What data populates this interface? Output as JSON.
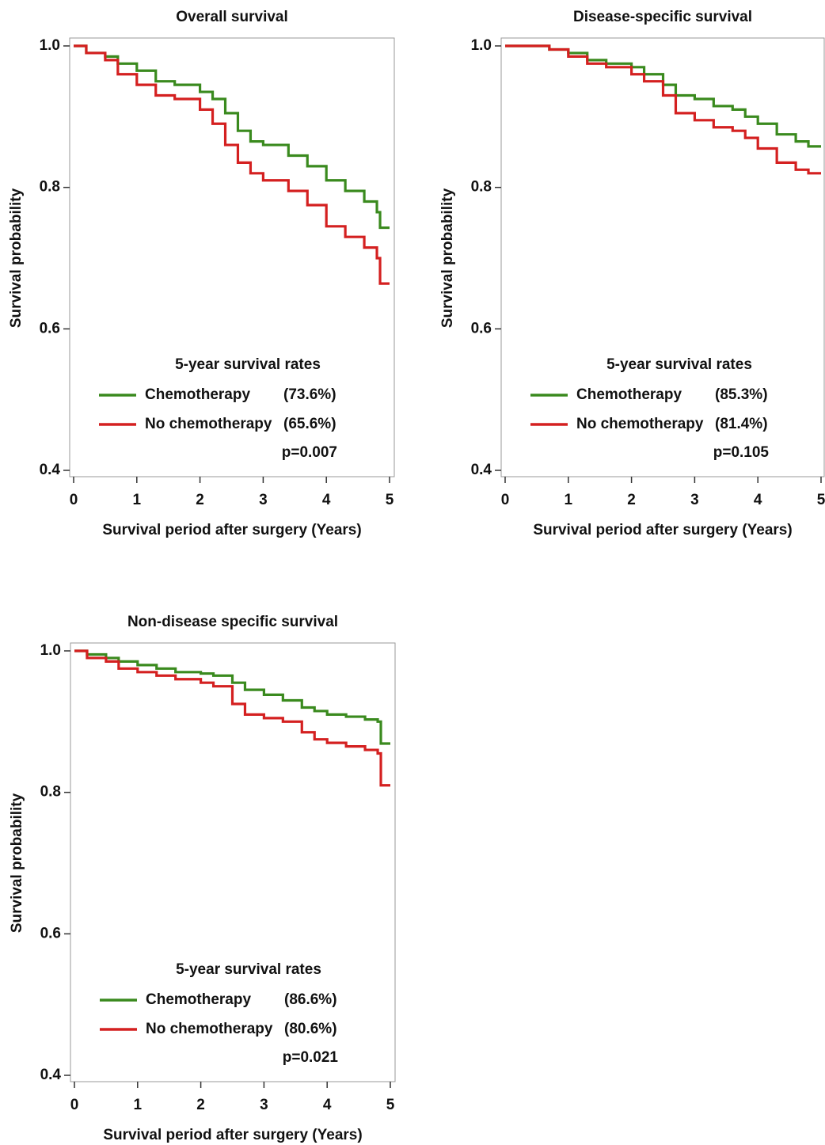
{
  "chart_data": [
    {
      "type": "line",
      "step": true,
      "title": "Overall survival",
      "x_label": "Survival period after surgery (Years)",
      "y_label": "Survival probability",
      "xlim": [
        0,
        5
      ],
      "xticks": [
        0,
        1,
        2,
        3,
        4,
        5
      ],
      "ylim": [
        0.4,
        1.0
      ],
      "yticks": [
        0.4,
        0.6,
        0.8,
        {
          "value": 1,
          "label": "1.0"
        }
      ],
      "legend_title": "5-year survival rates",
      "p_label": "p=0.007",
      "x": [
        0,
        0.2,
        0.5,
        0.7,
        1.0,
        1.3,
        1.6,
        2.0,
        2.2,
        2.4,
        2.6,
        2.8,
        3.0,
        3.4,
        3.7,
        4.0,
        4.3,
        4.6,
        4.8,
        4.85,
        5.0
      ],
      "series": [
        {
          "name": "Chemotherapy",
          "rate_label": "(73.6%)",
          "color": "#3a8a1e",
          "values": [
            1.0,
            0.99,
            0.985,
            0.975,
            0.965,
            0.95,
            0.945,
            0.935,
            0.925,
            0.905,
            0.88,
            0.865,
            0.86,
            0.845,
            0.83,
            0.81,
            0.795,
            0.78,
            0.765,
            0.743,
            0.743
          ]
        },
        {
          "name": "No chemotherapy",
          "rate_label": "(65.6%)",
          "color": "#d42020",
          "values": [
            1.0,
            0.99,
            0.98,
            0.96,
            0.945,
            0.93,
            0.925,
            0.91,
            0.89,
            0.86,
            0.835,
            0.82,
            0.81,
            0.795,
            0.775,
            0.745,
            0.73,
            0.715,
            0.7,
            0.664,
            0.664
          ]
        }
      ]
    },
    {
      "type": "line",
      "step": true,
      "title": "Disease-specific survival",
      "x_label": "Survival period after surgery (Years)",
      "y_label": "Survival probability",
      "xlim": [
        0,
        5
      ],
      "xticks": [
        0,
        1,
        2,
        3,
        4,
        5
      ],
      "ylim": [
        0.4,
        1.0
      ],
      "yticks": [
        0.4,
        0.6,
        0.8,
        {
          "value": 1,
          "label": "1.0"
        }
      ],
      "legend_title": "5-year survival rates",
      "p_label": "p=0.105",
      "x": [
        0,
        0.5,
        0.7,
        1.0,
        1.3,
        1.6,
        2.0,
        2.2,
        2.5,
        2.7,
        3.0,
        3.3,
        3.6,
        3.8,
        4.0,
        4.3,
        4.6,
        4.8,
        5.0
      ],
      "series": [
        {
          "name": "Chemotherapy",
          "rate_label": "(85.3%)",
          "color": "#3a8a1e",
          "values": [
            1.0,
            1.0,
            0.995,
            0.99,
            0.98,
            0.975,
            0.97,
            0.96,
            0.945,
            0.93,
            0.925,
            0.915,
            0.91,
            0.9,
            0.89,
            0.875,
            0.865,
            0.858,
            0.858
          ]
        },
        {
          "name": "No chemotherapy",
          "rate_label": "(81.4%)",
          "color": "#d42020",
          "values": [
            1.0,
            1.0,
            0.995,
            0.985,
            0.975,
            0.97,
            0.96,
            0.95,
            0.93,
            0.905,
            0.895,
            0.885,
            0.88,
            0.87,
            0.855,
            0.835,
            0.825,
            0.82,
            0.82
          ]
        }
      ]
    },
    {
      "type": "line",
      "step": true,
      "title": "Non-disease specific survival",
      "x_label": "Survival period after surgery (Years)",
      "y_label": "Survival probability",
      "xlim": [
        0,
        5
      ],
      "xticks": [
        0,
        1,
        2,
        3,
        4,
        5
      ],
      "ylim": [
        0.4,
        1.0
      ],
      "yticks": [
        0.4,
        0.6,
        0.8,
        {
          "value": 1,
          "label": "1.0"
        }
      ],
      "legend_title": "5-year survival rates",
      "p_label": "p=0.021",
      "x": [
        0,
        0.2,
        0.5,
        0.7,
        1.0,
        1.3,
        1.6,
        2.0,
        2.2,
        2.5,
        2.7,
        3.0,
        3.3,
        3.6,
        3.8,
        4.0,
        4.3,
        4.6,
        4.8,
        4.85,
        5.0
      ],
      "series": [
        {
          "name": "Chemotherapy",
          "rate_label": "(86.6%)",
          "color": "#3a8a1e",
          "values": [
            1.0,
            0.995,
            0.99,
            0.985,
            0.98,
            0.975,
            0.97,
            0.968,
            0.965,
            0.955,
            0.945,
            0.938,
            0.93,
            0.92,
            0.915,
            0.91,
            0.907,
            0.903,
            0.9,
            0.869,
            0.869
          ]
        },
        {
          "name": "No chemotherapy",
          "rate_label": "(80.6%)",
          "color": "#d42020",
          "values": [
            1.0,
            0.99,
            0.985,
            0.975,
            0.97,
            0.965,
            0.96,
            0.955,
            0.95,
            0.925,
            0.91,
            0.905,
            0.9,
            0.885,
            0.875,
            0.87,
            0.865,
            0.86,
            0.855,
            0.81,
            0.81
          ]
        }
      ]
    }
  ]
}
